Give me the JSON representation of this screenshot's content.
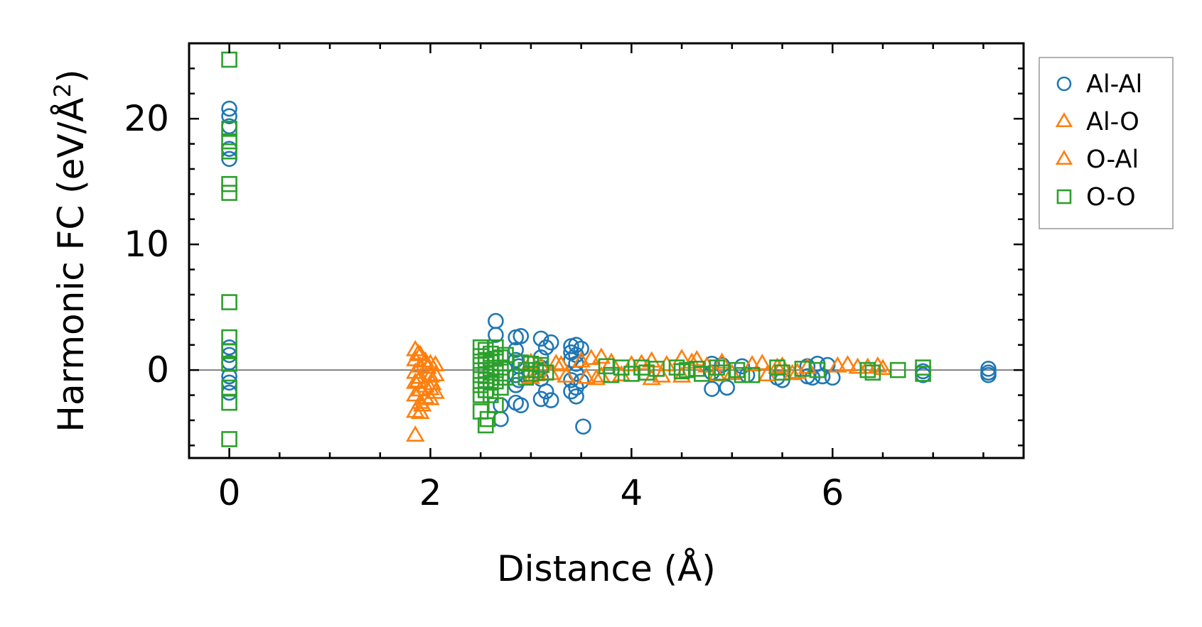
{
  "chart_data": {
    "type": "scatter",
    "title": "",
    "xlabel": "Distance (Å)",
    "ylabel_main": "Harmonic FC (eV/Å",
    "ylabel_sup": "2",
    "ylabel_close": ")",
    "xlim": [
      -0.4,
      7.9
    ],
    "ylim": [
      -7,
      26
    ],
    "x_ticks": [
      0,
      2,
      4,
      6
    ],
    "x_tick_labels": [
      "0",
      "2",
      "4",
      "6"
    ],
    "y_ticks": [
      0,
      10,
      20
    ],
    "y_tick_labels": [
      "0",
      "10",
      "20"
    ],
    "zero_line": true,
    "grid": false,
    "legend_position": "outside-right",
    "series": [
      {
        "name": "Al-Al",
        "marker": "circle",
        "color": "#1f77b4",
        "points": [
          [
            0,
            20.8
          ],
          [
            0,
            20.2
          ],
          [
            0,
            19.4
          ],
          [
            0,
            17.6
          ],
          [
            0,
            16.8
          ],
          [
            0,
            1.8
          ],
          [
            0,
            1.2
          ],
          [
            0,
            0.6
          ],
          [
            0,
            -0.5
          ],
          [
            0,
            -1.0
          ],
          [
            0,
            -1.8
          ],
          [
            2.65,
            3.9
          ],
          [
            2.65,
            2.8
          ],
          [
            2.7,
            -2.8
          ],
          [
            2.7,
            -3.9
          ],
          [
            2.85,
            2.6
          ],
          [
            2.85,
            1.6
          ],
          [
            2.85,
            0.8
          ],
          [
            2.85,
            -0.4
          ],
          [
            2.85,
            -1.2
          ],
          [
            2.85,
            -2.6
          ],
          [
            2.9,
            2.7
          ],
          [
            2.9,
            -2.8
          ],
          [
            2.88,
            0.3
          ],
          [
            2.88,
            -0.8
          ],
          [
            3.1,
            2.5
          ],
          [
            3.1,
            1.0
          ],
          [
            3.1,
            0.2
          ],
          [
            3.1,
            -0.7
          ],
          [
            3.1,
            -2.3
          ],
          [
            3.15,
            1.8
          ],
          [
            3.15,
            -1.7
          ],
          [
            3.2,
            2.2
          ],
          [
            3.2,
            -2.4
          ],
          [
            3.4,
            1.9
          ],
          [
            3.4,
            1.4
          ],
          [
            3.4,
            0.8
          ],
          [
            3.4,
            -0.8
          ],
          [
            3.4,
            -1.7
          ],
          [
            3.45,
            2.0
          ],
          [
            3.45,
            1.2
          ],
          [
            3.45,
            0.5
          ],
          [
            3.45,
            -0.3
          ],
          [
            3.45,
            -1.4
          ],
          [
            3.45,
            -2.1
          ],
          [
            3.5,
            1.7
          ],
          [
            3.5,
            -0.9
          ],
          [
            3.52,
            -4.5
          ],
          [
            4.8,
            0.5
          ],
          [
            4.8,
            -0.2
          ],
          [
            4.8,
            -1.5
          ],
          [
            4.9,
            0.4
          ],
          [
            4.95,
            -1.4
          ],
          [
            5.1,
            0.3
          ],
          [
            5.15,
            -0.4
          ],
          [
            5.45,
            -0.6
          ],
          [
            5.5,
            -0.8
          ],
          [
            5.75,
            0.3
          ],
          [
            5.75,
            -0.5
          ],
          [
            5.8,
            -0.6
          ],
          [
            5.85,
            0.5
          ],
          [
            5.9,
            -0.5
          ],
          [
            5.95,
            0.4
          ],
          [
            6.0,
            -0.6
          ],
          [
            6.9,
            -0.1
          ],
          [
            6.9,
            -0.4
          ],
          [
            7.55,
            0.1
          ],
          [
            7.55,
            -0.2
          ],
          [
            7.55,
            -0.4
          ]
        ]
      },
      {
        "name": "Al-O",
        "marker": "triangle",
        "color": "#ff7f0e",
        "points": [
          [
            1.85,
            1.6
          ],
          [
            1.85,
            0.8
          ],
          [
            1.85,
            -0.2
          ],
          [
            1.85,
            -1.0
          ],
          [
            1.85,
            -2.0
          ],
          [
            1.85,
            -3.3
          ],
          [
            1.85,
            -5.2
          ],
          [
            1.9,
            1.2
          ],
          [
            1.9,
            0.3
          ],
          [
            1.9,
            -0.6
          ],
          [
            1.9,
            -1.6
          ],
          [
            1.9,
            -2.6
          ],
          [
            1.9,
            -3.4
          ],
          [
            1.95,
            0.7
          ],
          [
            1.95,
            -1.3
          ],
          [
            1.95,
            -2.2
          ],
          [
            2.0,
            0.5
          ],
          [
            2.0,
            -0.5
          ],
          [
            2.0,
            -1.5
          ],
          [
            2.0,
            -2.3
          ],
          [
            2.05,
            0.4
          ],
          [
            2.05,
            -0.4
          ],
          [
            2.05,
            -1.8
          ],
          [
            3.0,
            0.6
          ],
          [
            3.0,
            -0.6
          ],
          [
            3.1,
            0.3
          ],
          [
            3.2,
            -0.3
          ],
          [
            3.3,
            0.4
          ],
          [
            3.35,
            -0.5
          ],
          [
            3.5,
            0.7
          ],
          [
            3.55,
            -0.6
          ],
          [
            3.7,
            1.0
          ],
          [
            3.7,
            -0.5
          ],
          [
            3.8,
            0.6
          ],
          [
            3.9,
            -0.4
          ],
          [
            4.1,
            0.5
          ],
          [
            4.2,
            0.7
          ],
          [
            4.2,
            -0.7
          ],
          [
            4.35,
            0.4
          ],
          [
            4.5,
            0.9
          ],
          [
            4.5,
            -0.5
          ],
          [
            4.65,
            0.8
          ],
          [
            4.75,
            0.3
          ],
          [
            4.9,
            0.6
          ],
          [
            5.0,
            -0.3
          ],
          [
            5.3,
            0.5
          ],
          [
            5.35,
            -0.4
          ],
          [
            5.5,
            0.3
          ],
          [
            5.6,
            -0.3
          ],
          [
            5.75,
            0.2
          ],
          [
            6.05,
            0.3
          ],
          [
            6.15,
            0.4
          ],
          [
            6.25,
            0.2
          ],
          [
            6.45,
            0.3
          ],
          [
            6.5,
            0.1
          ]
        ]
      },
      {
        "name": "O-Al",
        "marker": "triangle",
        "color": "#ff7f0e",
        "points": [
          [
            1.88,
            1.3
          ],
          [
            1.88,
            -0.9
          ],
          [
            1.92,
            -2.8
          ],
          [
            1.97,
            0.2
          ],
          [
            2.02,
            -1.1
          ],
          [
            3.05,
            -0.4
          ],
          [
            3.25,
            0.5
          ],
          [
            3.6,
            0.9
          ],
          [
            3.65,
            -0.7
          ],
          [
            4.0,
            0.4
          ],
          [
            4.3,
            -0.5
          ],
          [
            4.6,
            0.6
          ],
          [
            4.85,
            -0.4
          ],
          [
            5.2,
            0.4
          ],
          [
            5.45,
            0.2
          ],
          [
            5.65,
            -0.2
          ],
          [
            6.35,
            0.2
          ]
        ]
      },
      {
        "name": "O-O",
        "marker": "square",
        "color": "#2ca02c",
        "points": [
          [
            0,
            24.7
          ],
          [
            0,
            19.2
          ],
          [
            0,
            18.2
          ],
          [
            0,
            17.4
          ],
          [
            0,
            14.8
          ],
          [
            0,
            14.1
          ],
          [
            0,
            5.4
          ],
          [
            0,
            2.6
          ],
          [
            0,
            1.5
          ],
          [
            0,
            0.5
          ],
          [
            0,
            -1.4
          ],
          [
            0,
            -2.6
          ],
          [
            0,
            -5.5
          ],
          [
            2.5,
            1.8
          ],
          [
            2.5,
            1.1
          ],
          [
            2.5,
            0.4
          ],
          [
            2.5,
            -0.4
          ],
          [
            2.5,
            -1.2
          ],
          [
            2.5,
            -2.0
          ],
          [
            2.5,
            -3.3
          ],
          [
            2.55,
            1.6
          ],
          [
            2.55,
            0.8
          ],
          [
            2.55,
            0.0
          ],
          [
            2.55,
            -0.8
          ],
          [
            2.55,
            -1.6
          ],
          [
            2.55,
            -4.4
          ],
          [
            2.57,
            -3.9
          ],
          [
            2.6,
            1.3
          ],
          [
            2.6,
            0.6
          ],
          [
            2.6,
            -0.2
          ],
          [
            2.6,
            -1.0
          ],
          [
            2.6,
            -2.0
          ],
          [
            2.65,
            1.8
          ],
          [
            2.65,
            0.9
          ],
          [
            2.65,
            0.0
          ],
          [
            2.65,
            -0.9
          ],
          [
            2.65,
            -2.8
          ],
          [
            2.7,
            1.0
          ],
          [
            2.7,
            0.2
          ],
          [
            2.7,
            -0.6
          ],
          [
            2.7,
            -1.4
          ],
          [
            2.75,
            1.2
          ],
          [
            2.75,
            -0.6
          ],
          [
            2.9,
            0.6
          ],
          [
            2.95,
            0.0
          ],
          [
            2.95,
            -0.6
          ],
          [
            3.0,
            0.5
          ],
          [
            3.0,
            -0.3
          ],
          [
            3.05,
            0.0
          ],
          [
            3.1,
            0.4
          ],
          [
            3.15,
            -0.2
          ],
          [
            3.75,
            0.3
          ],
          [
            3.8,
            -0.4
          ],
          [
            3.9,
            0.2
          ],
          [
            4.0,
            -0.3
          ],
          [
            4.1,
            0.2
          ],
          [
            4.15,
            -0.2
          ],
          [
            4.25,
            0.1
          ],
          [
            4.45,
            0.2
          ],
          [
            4.5,
            -0.1
          ],
          [
            4.55,
            0.0
          ],
          [
            4.65,
            0.1
          ],
          [
            4.7,
            -0.3
          ],
          [
            4.85,
            0.2
          ],
          [
            4.9,
            -0.2
          ],
          [
            5.05,
            0.0
          ],
          [
            5.1,
            -0.4
          ],
          [
            5.2,
            -0.4
          ],
          [
            5.45,
            0.2
          ],
          [
            5.5,
            -0.2
          ],
          [
            5.7,
            0.1
          ],
          [
            5.85,
            0.0
          ],
          [
            6.35,
            0.0
          ],
          [
            6.4,
            -0.2
          ],
          [
            6.65,
            0.0
          ],
          [
            6.9,
            0.2
          ],
          [
            6.9,
            -0.3
          ]
        ]
      }
    ]
  },
  "legend": {
    "entries": [
      {
        "label": "Al-Al",
        "marker": "circle",
        "color": "#1f77b4"
      },
      {
        "label": "Al-O",
        "marker": "triangle",
        "color": "#ff7f0e"
      },
      {
        "label": "O-Al",
        "marker": "triangle",
        "color": "#ff7f0e"
      },
      {
        "label": "O-O",
        "marker": "square",
        "color": "#2ca02c"
      }
    ]
  }
}
